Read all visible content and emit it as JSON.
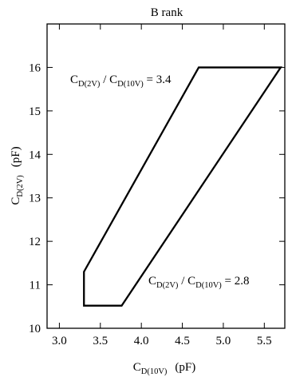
{
  "chart_data": {
    "type": "line",
    "title": "B rank",
    "xlabel": {
      "main": "C",
      "sub": "D(10V)",
      "unit": "(pF)"
    },
    "ylabel": {
      "main": "C",
      "sub": "D(2V)",
      "unit": "(pF)"
    },
    "xlim": [
      2.85,
      5.75
    ],
    "ylim": [
      10,
      17
    ],
    "xticks": [
      "3.0",
      "3.5",
      "4.0",
      "4.5",
      "5.0",
      "5.5"
    ],
    "yticks": [
      "10",
      "11",
      "12",
      "13",
      "14",
      "15",
      "16"
    ],
    "grid": false,
    "legend": "none",
    "series": [
      {
        "values": [
          {
            "x": 3.3,
            "y": 10.52
          },
          {
            "x": 3.3,
            "y": 11.3
          },
          {
            "x": 4.7,
            "y": 16.0
          },
          {
            "x": 5.7,
            "y": 16.0
          },
          {
            "x": 3.76,
            "y": 10.52
          },
          {
            "x": 3.3,
            "y": 10.52
          }
        ]
      }
    ],
    "annotations": [
      {
        "main": "C",
        "sub1": "D(2V)",
        "mid": " / C",
        "sub2": "D(10V)",
        "tail": " = 3.4"
      },
      {
        "main": "C",
        "sub1": "D(2V)",
        "mid": " / C",
        "sub2": "D(10V)",
        "tail": " = 2.8"
      }
    ]
  }
}
